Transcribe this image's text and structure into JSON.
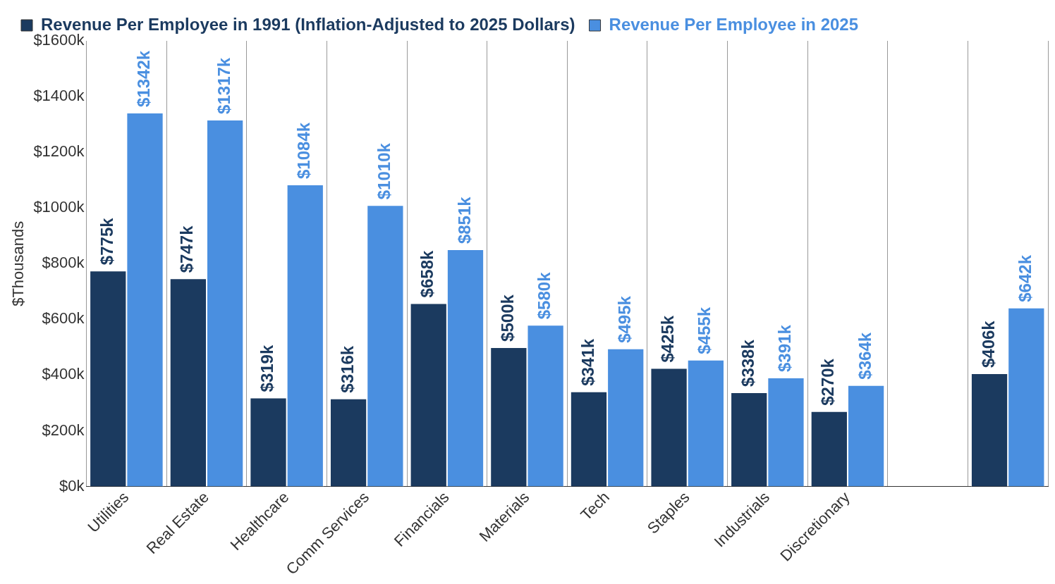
{
  "chart_data": {
    "type": "bar",
    "categories": [
      "Utilities",
      "Real Estate",
      "Healthcare",
      "Comm Services",
      "Financials",
      "Materials",
      "Tech",
      "Staples",
      "Industrials",
      "Discretionary",
      null,
      null
    ],
    "series": [
      {
        "name": "Revenue Per Employee in 1991 (Inflation-Adjusted to 2025 Dollars)",
        "color": "#1b3a5f",
        "values": [
          775,
          747,
          319,
          316,
          658,
          500,
          341,
          425,
          338,
          270,
          null,
          406
        ],
        "value_labels": [
          "$775k",
          "$747k",
          "$319k",
          "$316k",
          "$658k",
          "$500k",
          "$341k",
          "$425k",
          "$338k",
          "$270k",
          null,
          "$406k"
        ]
      },
      {
        "name": "Revenue Per Employee in 2025",
        "color": "#4a8fe0",
        "values": [
          1342,
          1317,
          1084,
          1010,
          851,
          580,
          495,
          455,
          391,
          364,
          null,
          642
        ],
        "value_labels": [
          "$1342k",
          "$1317k",
          "$1084k",
          "$1010k",
          "$851k",
          "$580k",
          "$495k",
          "$455k",
          "$391k",
          "$364k",
          null,
          "$642k"
        ]
      }
    ],
    "ylabel": "$Thousands",
    "ylim": [
      0,
      1600
    ],
    "yticks": [
      {
        "value": 0,
        "label": "$0k"
      },
      {
        "value": 200,
        "label": "$200k"
      },
      {
        "value": 400,
        "label": "$400k"
      },
      {
        "value": 600,
        "label": "$600k"
      },
      {
        "value": 800,
        "label": "$800k"
      },
      {
        "value": 1000,
        "label": "$1000k"
      },
      {
        "value": 1200,
        "label": "$1200k"
      },
      {
        "value": 1400,
        "label": "$1400k"
      },
      {
        "value": 1600,
        "label": "$1600k"
      }
    ],
    "grid": "x",
    "legend": "top"
  }
}
